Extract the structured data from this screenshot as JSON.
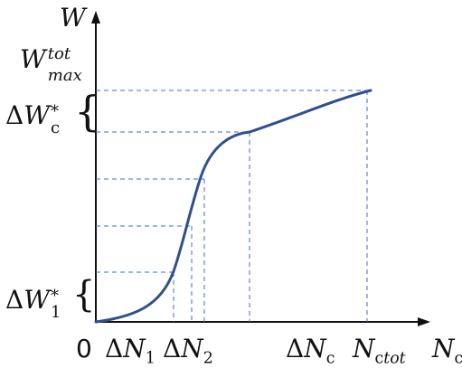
{
  "axes": {
    "y_label": "W",
    "x_label": "N",
    "x_label_sub": "c",
    "origin": "0"
  },
  "y_labels": {
    "w_max": {
      "main": "W",
      "sup": "tot",
      "sub": "max"
    },
    "delta_w_c": {
      "delta": "Δ",
      "main": "W",
      "sub": "c",
      "sup": "*"
    },
    "delta_w_1": {
      "delta": "Δ",
      "main": "W",
      "sub": "1",
      "sup": "*"
    }
  },
  "x_ticks": {
    "dn1": {
      "delta": "Δ",
      "main": "N",
      "sub": "1"
    },
    "dn2": {
      "delta": "Δ",
      "main": "N",
      "sub": "2"
    },
    "dnc": {
      "delta": "Δ",
      "main": "N",
      "sub": "c"
    },
    "nctot": {
      "main": "N",
      "sub": "c",
      "sub2": "tot"
    }
  },
  "colors": {
    "curve": "#2f4f8f",
    "guides": "#3a6fd0",
    "axis": "#111111"
  },
  "braces": {
    "upper": "{",
    "lower": "{"
  }
}
